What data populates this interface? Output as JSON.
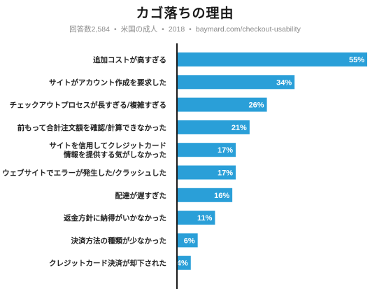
{
  "header": {
    "title": "カゴ落ちの理由",
    "subtitle_parts": [
      "回答数2,584",
      "米国の成人",
      "2018",
      "baymard.com/checkout-usability"
    ]
  },
  "chart_data": {
    "type": "bar",
    "orientation": "horizontal",
    "title": "カゴ落ちの理由",
    "categories": [
      [
        "追加コストが高すぎる"
      ],
      [
        "サイトがアカウント作成を要求した"
      ],
      [
        "チェックアウトプロセスが長すぎる/複雑すぎる"
      ],
      [
        "前もって合計注文額を確認/計算できなかった"
      ],
      [
        "サイトを信用してクレジットカード",
        "情報を提供する気がしなかった"
      ],
      [
        "ウェブサイトでエラーが発生した/クラッシュした"
      ],
      [
        "配達が遅すぎた"
      ],
      [
        "返金方針に納得がいかなかった"
      ],
      [
        "決済方法の種類が少なかった"
      ],
      [
        "クレジットカード決済が却下された"
      ]
    ],
    "values": [
      55,
      34,
      26,
      21,
      17,
      17,
      16,
      11,
      6,
      4
    ],
    "value_labels": [
      "55%",
      "34%",
      "26%",
      "21%",
      "17%",
      "17%",
      "16%",
      "11%",
      "6%",
      "4%"
    ],
    "unit": "%",
    "xlim": [
      0,
      55
    ],
    "grid": false,
    "colors": {
      "bar": "#2a9fd8",
      "axis": "#1a1a1a",
      "label": "#222222",
      "value": "#ffffff"
    }
  }
}
